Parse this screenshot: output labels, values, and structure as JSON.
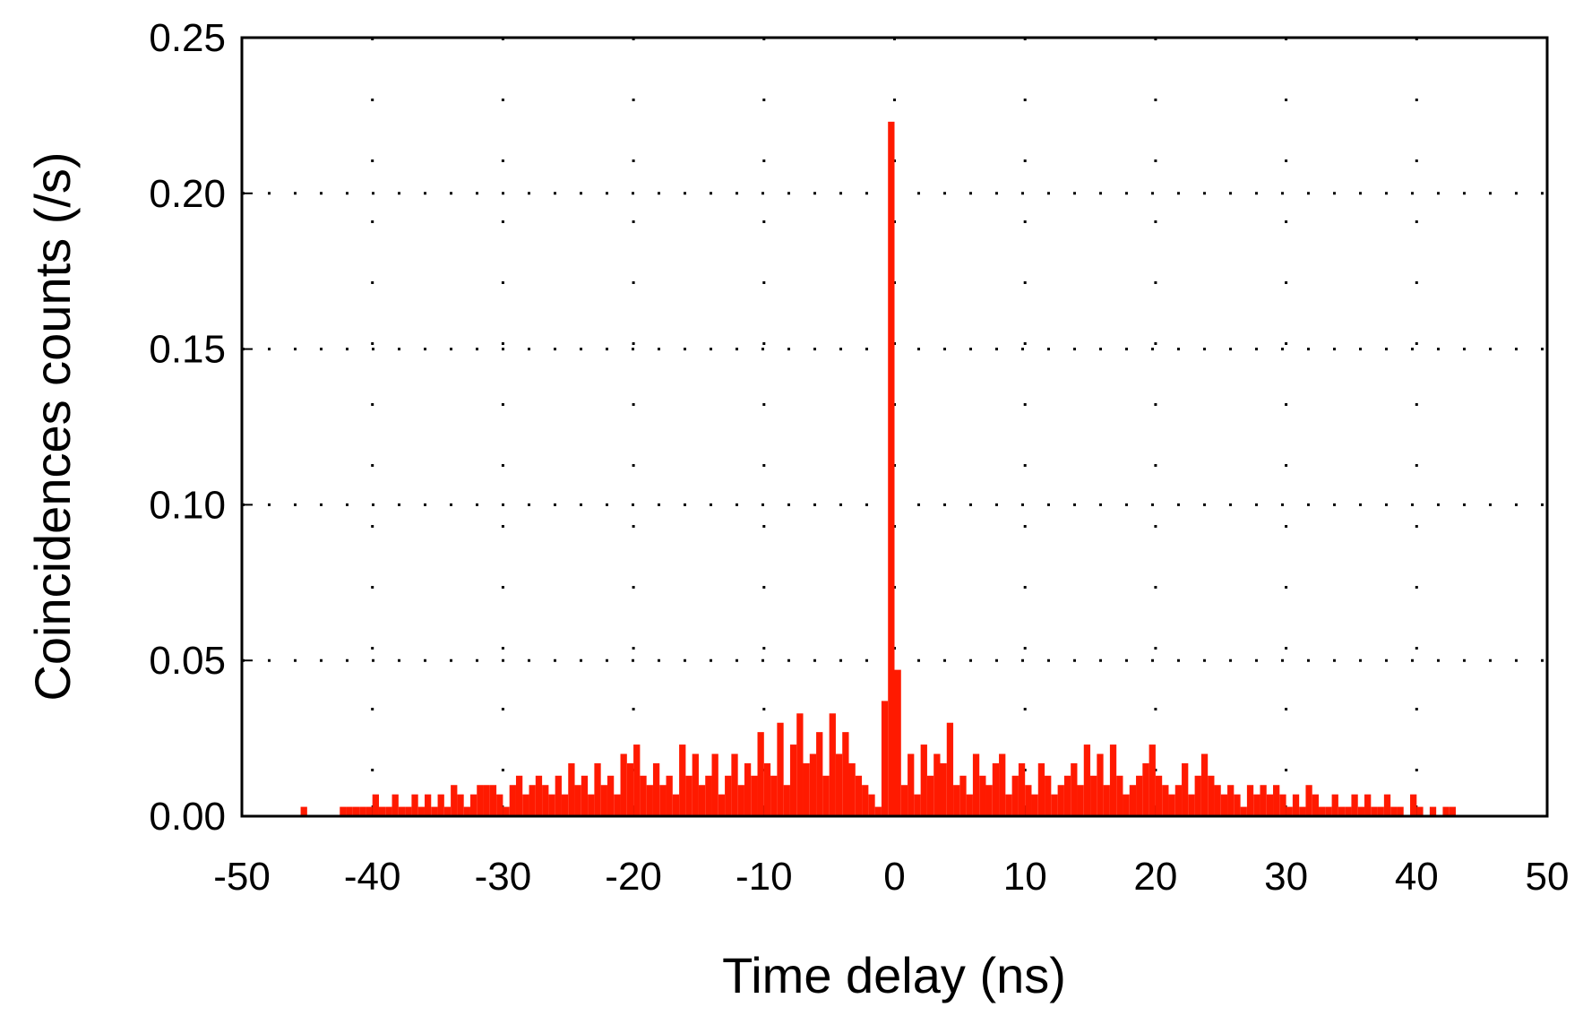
{
  "chart_data": {
    "type": "histogram",
    "xlabel": "Time delay (ns)",
    "ylabel": "Coincidences counts (/s)",
    "color": "#ff1a00",
    "xlim": [
      -50,
      50
    ],
    "xticks": [
      -50,
      -40,
      -30,
      -20,
      -10,
      0,
      10,
      20,
      30,
      40,
      50
    ],
    "ylim": [
      0,
      0.25
    ],
    "yticks": [
      {
        "value": 0,
        "label": "0.00"
      },
      0.05,
      {
        "value": 0.1,
        "label": "0.10"
      },
      0.15,
      {
        "value": 0.2,
        "label": "0.20"
      },
      0.25
    ],
    "grid": true,
    "bins": [
      -46,
      -45.5,
      -45,
      -44.5,
      -44,
      -43.5,
      -43,
      -42.5,
      -42,
      -41.5,
      -41,
      -40.5,
      -40,
      -39.5,
      -39,
      -38.5,
      -38,
      -37.5,
      -37,
      -36.5,
      -36,
      -35.5,
      -35,
      -34.5,
      -34,
      -33.5,
      -33,
      -32.5,
      -32,
      -31.5,
      -31,
      -30.5,
      -30,
      -29.5,
      -29,
      -28.5,
      -28,
      -27.5,
      -27,
      -26.5,
      -26,
      -25.5,
      -25,
      -24.5,
      -24,
      -23.5,
      -23,
      -22.5,
      -22,
      -21.5,
      -21,
      -20.5,
      -20,
      -19.5,
      -19,
      -18.5,
      -18,
      -17.5,
      -17,
      -16.5,
      -16,
      -15.5,
      -15,
      -14.5,
      -14,
      -13.5,
      -13,
      -12.5,
      -12,
      -11.5,
      -11,
      -10.5,
      -10,
      -9.5,
      -9,
      -8.5,
      -8,
      -7.5,
      -7,
      -6.5,
      -6,
      -5.5,
      -5,
      -4.5,
      -4,
      -3.5,
      -3,
      -2.5,
      -2,
      -1.5,
      -1,
      -0.5,
      0,
      0.5,
      1,
      1.5,
      2,
      2.5,
      3,
      3.5,
      4,
      4.5,
      5,
      5.5,
      6,
      6.5,
      7,
      7.5,
      8,
      8.5,
      9,
      9.5,
      10,
      10.5,
      11,
      11.5,
      12,
      12.5,
      13,
      13.5,
      14,
      14.5,
      15,
      15.5,
      16,
      16.5,
      17,
      17.5,
      18,
      18.5,
      19,
      19.5,
      20,
      20.5,
      21,
      21.5,
      22,
      22.5,
      23,
      23.5,
      24,
      24.5,
      25,
      25.5,
      26,
      26.5,
      27,
      27.5,
      28,
      28.5,
      29,
      29.5,
      30,
      30.5,
      31,
      31.5,
      32,
      32.5,
      33,
      33.5,
      34,
      34.5,
      35,
      35.5,
      36,
      36.5,
      37,
      37.5,
      38,
      38.5,
      39,
      39.5,
      40,
      40.5,
      41,
      41.5,
      42,
      42.5,
      43,
      43.5,
      44
    ],
    "values": [
      0,
      0.003,
      0,
      0,
      0,
      0,
      0,
      0.003,
      0.003,
      0.003,
      0.003,
      0.003,
      0.007,
      0.003,
      0.003,
      0.007,
      0.003,
      0.003,
      0.007,
      0.003,
      0.007,
      0.003,
      0.007,
      0.003,
      0.01,
      0.007,
      0.003,
      0.007,
      0.01,
      0.01,
      0.01,
      0.007,
      0.003,
      0.01,
      0.013,
      0.007,
      0.01,
      0.013,
      0.01,
      0.007,
      0.013,
      0.007,
      0.017,
      0.01,
      0.013,
      0.007,
      0.017,
      0.01,
      0.013,
      0.007,
      0.02,
      0.017,
      0.023,
      0.013,
      0.01,
      0.017,
      0.01,
      0.013,
      0.007,
      0.023,
      0.013,
      0.02,
      0.01,
      0.013,
      0.02,
      0.007,
      0.013,
      0.02,
      0.01,
      0.017,
      0.013,
      0.027,
      0.017,
      0.013,
      0.03,
      0.01,
      0.023,
      0.033,
      0.017,
      0.02,
      0.027,
      0.013,
      0.033,
      0.02,
      0.027,
      0.017,
      0.013,
      0.01,
      0.007,
      0.003,
      0.037,
      0.223,
      0.047,
      0.01,
      0.02,
      0.007,
      0.023,
      0.013,
      0.02,
      0.017,
      0.03,
      0.01,
      0.013,
      0.007,
      0.02,
      0.013,
      0.01,
      0.017,
      0.02,
      0.007,
      0.013,
      0.017,
      0.01,
      0.007,
      0.017,
      0.013,
      0.007,
      0.01,
      0.013,
      0.017,
      0.01,
      0.023,
      0.013,
      0.02,
      0.01,
      0.023,
      0.013,
      0.007,
      0.01,
      0.013,
      0.017,
      0.023,
      0.013,
      0.01,
      0.007,
      0.01,
      0.017,
      0.007,
      0.013,
      0.02,
      0.013,
      0.01,
      0.007,
      0.01,
      0.007,
      0.003,
      0.01,
      0.007,
      0.01,
      0.007,
      0.01,
      0.007,
      0.003,
      0.007,
      0.003,
      0.01,
      0.007,
      0.003,
      0.003,
      0.007,
      0.003,
      0.003,
      0.007,
      0.003,
      0.007,
      0.003,
      0.003,
      0.007,
      0.003,
      0.003,
      0,
      0.007,
      0.003,
      0,
      0.003,
      0,
      0.003,
      0.003,
      0,
      0
    ]
  }
}
